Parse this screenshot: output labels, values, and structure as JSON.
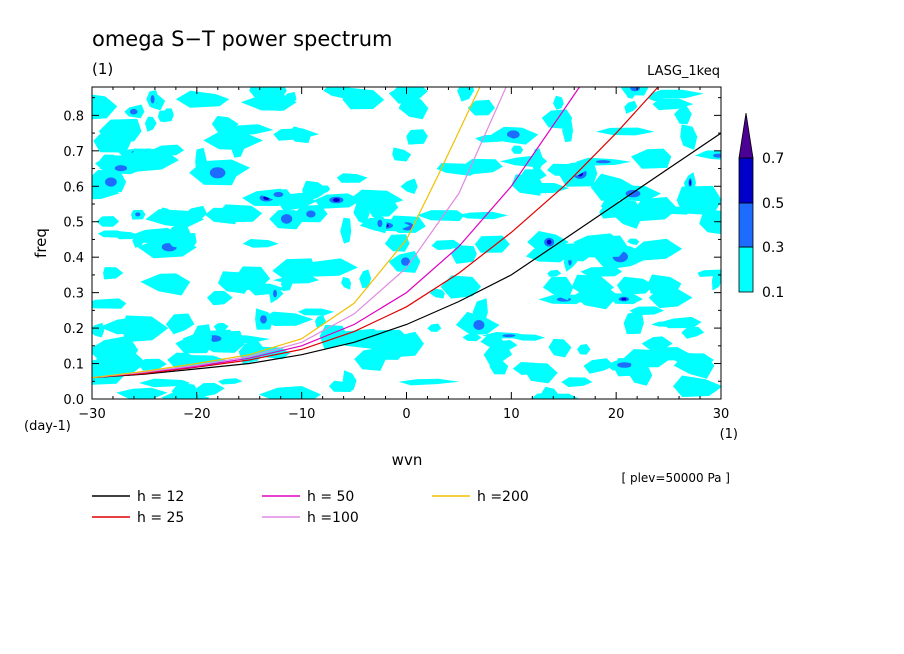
{
  "chart_data": {
    "type": "line",
    "title": "omega S−T power spectrum",
    "title_unit": "(1)",
    "dataset_label": "LASG_1keq",
    "xlabel": "wvn",
    "ylabel": "freq",
    "x_unit": "(1)",
    "y_unit": "(day-1)",
    "level_note": "[ plev=50000 Pa ]",
    "xlim": [
      -30,
      30
    ],
    "ylim": [
      0,
      0.88
    ],
    "x_ticks": [
      -30,
      -20,
      -10,
      0,
      10,
      20,
      30
    ],
    "x_tick_labels": [
      "−30",
      "−20",
      "−10",
      "0",
      "10",
      "20",
      "30"
    ],
    "y_ticks": [
      0,
      0.1,
      0.2,
      0.3,
      0.4,
      0.5,
      0.6,
      0.7,
      0.8
    ],
    "y_tick_labels": [
      "0.0",
      "0.1",
      "0.2",
      "0.3",
      "0.4",
      "0.5",
      "0.6",
      "0.7",
      "0.8"
    ],
    "colorbar": {
      "levels": [
        "0.1",
        "0.3",
        "0.5",
        "0.7"
      ],
      "colors": [
        "#00ffff",
        "#1e6cff",
        "#0000c8",
        "#4b0096"
      ]
    },
    "series": [
      {
        "name": "h = 12",
        "color": "#000000",
        "x": [
          -30,
          -25,
          -20,
          -15,
          -10,
          -5,
          0,
          5,
          10,
          15,
          20,
          25,
          30
        ],
        "y": [
          0.06,
          0.07,
          0.085,
          0.1,
          0.125,
          0.16,
          0.21,
          0.275,
          0.35,
          0.45,
          0.55,
          0.65,
          0.75
        ]
      },
      {
        "name": "h = 25",
        "color": "#e00000",
        "x": [
          -30,
          -25,
          -20,
          -15,
          -10,
          -5,
          0,
          5,
          10,
          15,
          20,
          24
        ],
        "y": [
          0.06,
          0.072,
          0.09,
          0.11,
          0.14,
          0.19,
          0.26,
          0.355,
          0.47,
          0.6,
          0.75,
          0.88
        ]
      },
      {
        "name": "h = 50",
        "color": "#e000c0",
        "x": [
          -30,
          -25,
          -20,
          -15,
          -10,
          -5,
          0,
          5,
          10,
          16.5
        ],
        "y": [
          0.06,
          0.075,
          0.092,
          0.115,
          0.15,
          0.21,
          0.3,
          0.43,
          0.6,
          0.88
        ]
      },
      {
        "name": "h =100",
        "color": "#e08ae0",
        "x": [
          -30,
          -25,
          -20,
          -15,
          -10,
          -5,
          0,
          5,
          9.5
        ],
        "y": [
          0.06,
          0.076,
          0.095,
          0.12,
          0.16,
          0.24,
          0.37,
          0.58,
          0.88
        ]
      },
      {
        "name": "h =200",
        "color": "#f0c000",
        "x": [
          -30,
          -25,
          -20,
          -15,
          -10,
          -5,
          0,
          3,
          7
        ],
        "y": [
          0.06,
          0.078,
          0.1,
          0.125,
          0.17,
          0.27,
          0.45,
          0.63,
          0.88
        ]
      }
    ],
    "grid": false,
    "legend_position": "bottom-left"
  }
}
